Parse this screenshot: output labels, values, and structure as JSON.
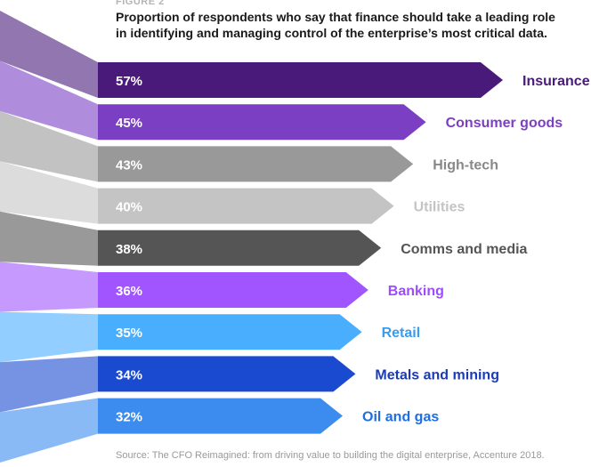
{
  "figure_label": "FIGURE 2",
  "chart_data": {
    "type": "bar",
    "title": "Proportion of respondents who say that finance should take a leading role in identifying and managing control of the enterprise’s most critical data.",
    "categories": [
      "Insurance",
      "Consumer goods",
      "High-tech",
      "Utilities",
      "Comms and media",
      "Banking",
      "Retail",
      "Metals and mining",
      "Oil and gas"
    ],
    "values": [
      57,
      45,
      43,
      40,
      38,
      36,
      35,
      34,
      32
    ],
    "value_labels": [
      "57%",
      "45%",
      "43%",
      "40%",
      "38%",
      "36%",
      "35%",
      "34%",
      "32%"
    ],
    "colors": [
      "#4a1a7a",
      "#7b3fc4",
      "#999999",
      "#c4c4c4",
      "#555555",
      "#a055ff",
      "#4aaeff",
      "#1a4ad0",
      "#3c8cf0"
    ],
    "label_colors": [
      "#4a1a7a",
      "#7b3fc4",
      "#888888",
      "#c4c4c4",
      "#555555",
      "#9b4dff",
      "#3a9cf0",
      "#1a3ab8",
      "#1f6ee0"
    ],
    "xlabel": "",
    "ylabel": ""
  },
  "source": "Source: The CFO Reimagined: from driving value to building the digital enterprise, Accenture 2018."
}
